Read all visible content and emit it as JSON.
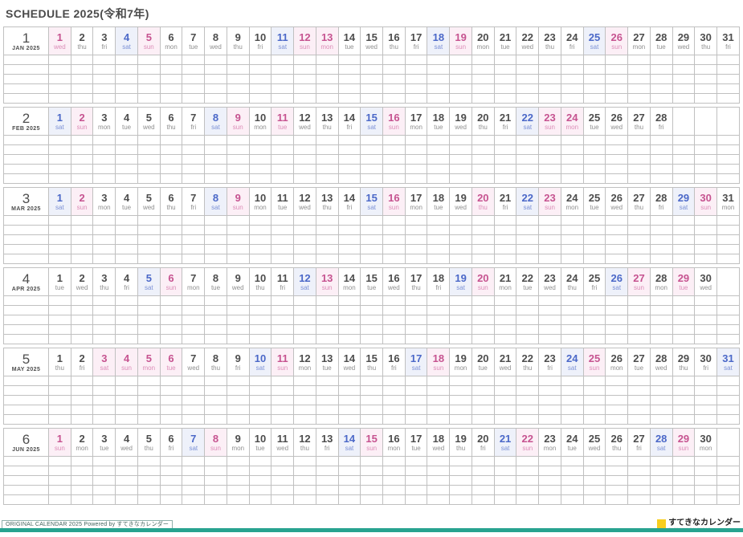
{
  "page": {
    "title": "SCHEDULE 2025(令和7年)"
  },
  "weekday_names": [
    "sun",
    "mon",
    "tue",
    "wed",
    "thu",
    "fri",
    "sat"
  ],
  "calendar": {
    "year": 2025,
    "max_day_columns": 31,
    "note_rows_per_month": 5,
    "months": [
      {
        "num": "1",
        "label": "JAN 2025",
        "days": 31,
        "first_weekday": 3,
        "holidays": [
          1,
          13
        ]
      },
      {
        "num": "2",
        "label": "FEB 2025",
        "days": 28,
        "first_weekday": 6,
        "holidays": [
          11,
          23,
          24
        ]
      },
      {
        "num": "3",
        "label": "MAR 2025",
        "days": 31,
        "first_weekday": 6,
        "holidays": [
          20
        ]
      },
      {
        "num": "4",
        "label": "APR 2025",
        "days": 30,
        "first_weekday": 2,
        "holidays": [
          29
        ]
      },
      {
        "num": "5",
        "label": "MAY 2025",
        "days": 31,
        "first_weekday": 4,
        "holidays": [
          3,
          4,
          5,
          6
        ]
      },
      {
        "num": "6",
        "label": "JUN 2025",
        "days": 30,
        "first_weekday": 0,
        "holidays": []
      }
    ]
  },
  "footer": {
    "credit": "ORIGINAL CALENDAR 2025 Powered by すてきなカレンダー",
    "badge_label": "すてきなカレンダー",
    "badge_caption": "SUTEKINA CALENDAR"
  },
  "colors": {
    "title_text": "#4a4a4a",
    "day_text": "#4d4d4d",
    "weekday_text": "#8f8f8f",
    "saturday_text": "#4b68c8",
    "saturday_bg": "#eef1fa",
    "sunday_holiday_text": "#c65390",
    "sunday_holiday_bg": "#fceff6",
    "grid_line": "#c0c0c0",
    "accent_bar": "#28a390",
    "badge_yellow": "#f8ce1e"
  }
}
